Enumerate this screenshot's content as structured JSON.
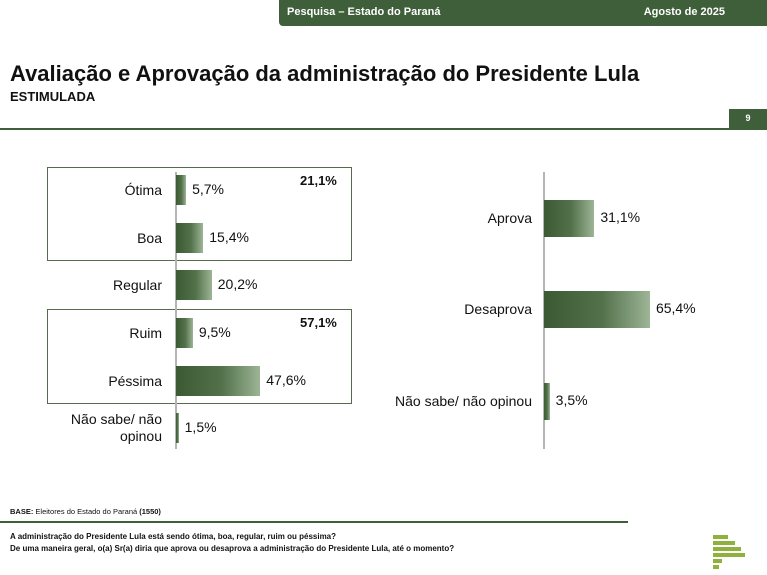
{
  "header": {
    "survey": "Pesquisa – Estado do Paraná",
    "date": "Agosto de 2025"
  },
  "title": "Avaliação e Aprovação da administração do Presidente Lula",
  "subtitle": "ESTIMULADA",
  "page_number": "9",
  "chart_data": [
    {
      "type": "bar",
      "orientation": "horizontal",
      "categories": [
        "Ótima",
        "Boa",
        "Regular",
        "Ruim",
        "Péssima",
        "Não sabe/ não opinou"
      ],
      "values": [
        5.7,
        15.4,
        20.2,
        9.5,
        47.6,
        1.5
      ],
      "value_labels": [
        "5,7%",
        "15,4%",
        "20,2%",
        "9,5%",
        "47,6%",
        "1,5%"
      ],
      "unit": "%",
      "groups": [
        {
          "members": [
            "Ótima",
            "Boa"
          ],
          "total_label": "21,1%"
        },
        {
          "members": [
            "Ruim",
            "Péssima"
          ],
          "total_label": "57,1%"
        }
      ]
    },
    {
      "type": "bar",
      "orientation": "horizontal",
      "categories": [
        "Aprova",
        "Desaprova",
        "Não sabe/ não opinou"
      ],
      "values": [
        31.1,
        65.4,
        3.5
      ],
      "value_labels": [
        "31,1%",
        "65,4%",
        "3,5%"
      ],
      "unit": "%"
    }
  ],
  "footer": {
    "base_label": "BASE:",
    "base_text": " Eleitores do Estado do Paraná ",
    "base_count": "(1550)",
    "question1": "A administração do Presidente Lula está sendo ótima, boa, regular, ruim ou péssima?",
    "question2": "De uma maneira geral, o(a) Sr(a) diria que aprova ou desaprova a administração do Presidente Lula, até o momento?"
  },
  "colors": {
    "brand_dark_green": "#3f5e3a",
    "bar_gradient_start": "#3b5a33",
    "bar_gradient_end": "#9db596",
    "logo_green": "#8fb23f"
  }
}
